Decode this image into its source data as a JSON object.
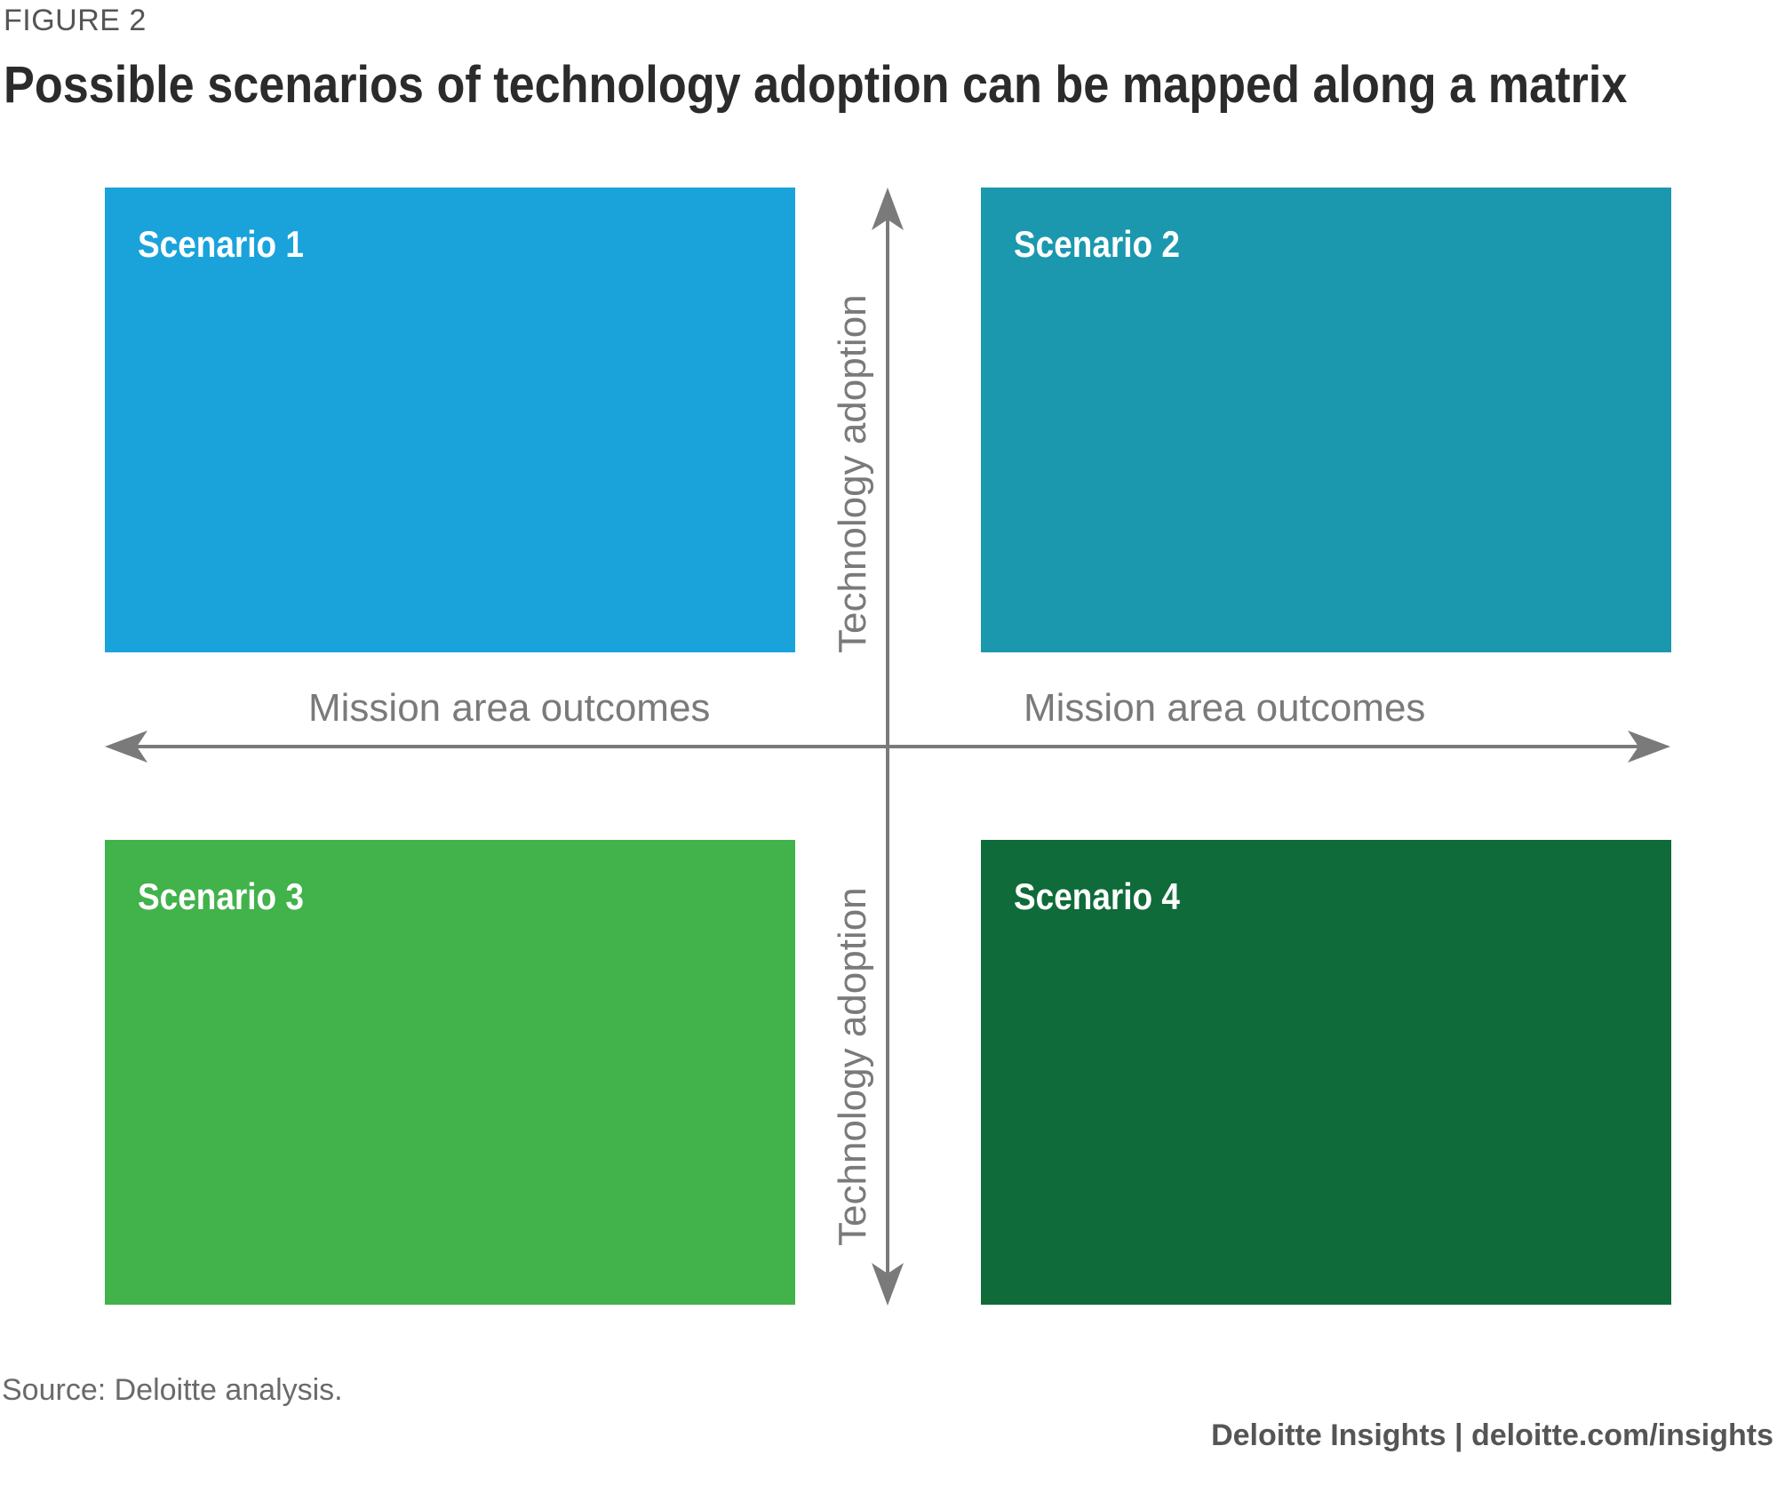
{
  "header": {
    "figure_label": "FIGURE 2",
    "title": "Possible scenarios of technology adoption can be mapped along a matrix"
  },
  "quadrants": [
    {
      "label": "Scenario 1",
      "color": "#1aa3db"
    },
    {
      "label": "Scenario 2",
      "color": "#1b98ae"
    },
    {
      "label": "Scenario 3",
      "color": "#42b24b"
    },
    {
      "label": "Scenario 4",
      "color": "#0f6b39"
    }
  ],
  "axes": {
    "horizontal_label_left": "Mission area outcomes",
    "horizontal_label_right": "Mission area outcomes",
    "vertical_label_top": "Technology adoption",
    "vertical_label_bottom": "Technology adoption",
    "axis_color": "#7a7a7a"
  },
  "footer": {
    "source": "Source: Deloitte analysis.",
    "credit": "Deloitte Insights | deloitte.com/insights"
  }
}
